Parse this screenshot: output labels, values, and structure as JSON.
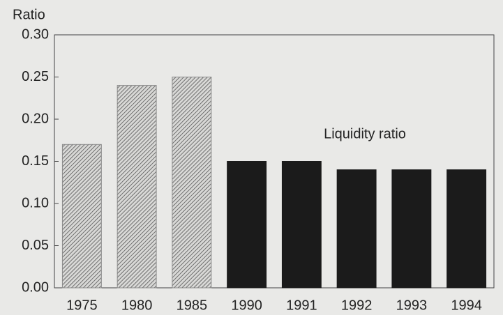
{
  "chart_data": {
    "type": "bar",
    "y_label": "Ratio",
    "annotation": "Liquidity ratio",
    "categories": [
      "1975",
      "1980",
      "1985",
      "1990",
      "1991",
      "1992",
      "1993",
      "1994"
    ],
    "values": [
      0.17,
      0.24,
      0.25,
      0.15,
      0.15,
      0.14,
      0.14,
      0.14
    ],
    "colors": [
      "#8a8a8a",
      "#8a8a8a",
      "#8a8a8a",
      "#1b1b1b",
      "#1b1b1b",
      "#1b1b1b",
      "#1b1b1b",
      "#1b1b1b"
    ],
    "hatched": [
      true,
      true,
      true,
      false,
      false,
      false,
      false,
      false
    ],
    "ylim": [
      0,
      0.3
    ],
    "yticks": [
      {
        "value": 0,
        "label": "0.00"
      },
      0.05,
      {
        "value": 0.1,
        "label": "0.10"
      },
      0.15,
      {
        "value": 0.2,
        "label": "0.20"
      },
      0.25,
      {
        "value": 0.3,
        "label": "0.30"
      }
    ],
    "grid": false
  }
}
